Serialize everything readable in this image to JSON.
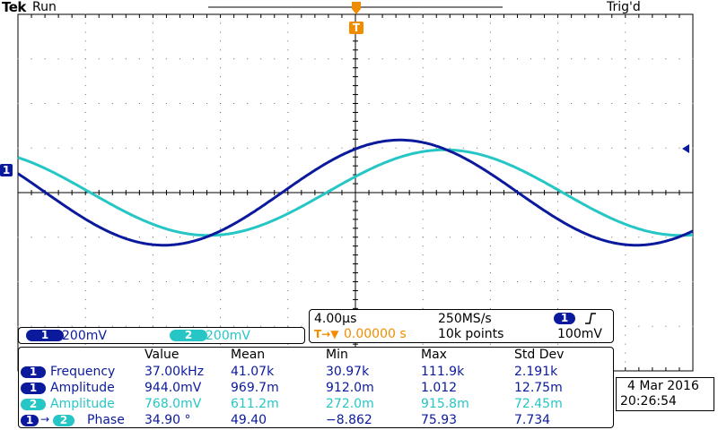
{
  "header": {
    "brand": "Tek",
    "run_state": "Run",
    "trigger_status": "Trig'd"
  },
  "markers": {
    "trigger_marker": "T",
    "ch1_marker": "1"
  },
  "channels": {
    "ch1": {
      "id": "1",
      "scale": "200mV",
      "color": "#0b1a9c"
    },
    "ch2": {
      "id": "2",
      "scale": "200mV",
      "color": "#26c6c6"
    }
  },
  "timebase": {
    "time_per_div": "4.00µs",
    "sample_rate": "250MS/s",
    "trigger_position": "0.00000 s",
    "record_length": "10k points",
    "trigger_source": "1",
    "trigger_level": "100mV",
    "trigger_slope_icon": "rising-edge-icon",
    "trigger_pos_icon": "T→▼"
  },
  "measurements": {
    "headers": [
      "Value",
      "Mean",
      "Min",
      "Max",
      "Std Dev"
    ],
    "rows": [
      {
        "ch": "1",
        "label": "Frequency",
        "value": "37.00kHz",
        "mean": "41.07k",
        "min": "30.97k",
        "max": "111.9k",
        "std": "2.191k"
      },
      {
        "ch": "1",
        "label": "Amplitude",
        "value": "944.0mV",
        "mean": "969.7m",
        "min": "912.0m",
        "max": "1.012",
        "std": "12.75m"
      },
      {
        "ch": "2",
        "label": "Amplitude",
        "value": "768.0mV",
        "mean": "611.2m",
        "min": "272.0m",
        "max": "915.8m",
        "std": "72.45m"
      },
      {
        "ch": "1",
        "ch_to": "2",
        "label": "Phase",
        "value": "34.90 °",
        "mean": "49.40",
        "min": "−8.862",
        "max": "75.93",
        "std": "7.734"
      }
    ]
  },
  "datetime": {
    "date": "4 Mar  2016",
    "time": "20:26:54"
  },
  "waveforms": {
    "ch1": {
      "period_div": 7.0,
      "amplitude_div": 1.18,
      "phase_deg": 56,
      "color": "#0b1a9c"
    },
    "ch2": {
      "period_div": 7.0,
      "amplitude_div": 0.96,
      "phase_deg": 22,
      "color": "#26c6c6"
    }
  }
}
